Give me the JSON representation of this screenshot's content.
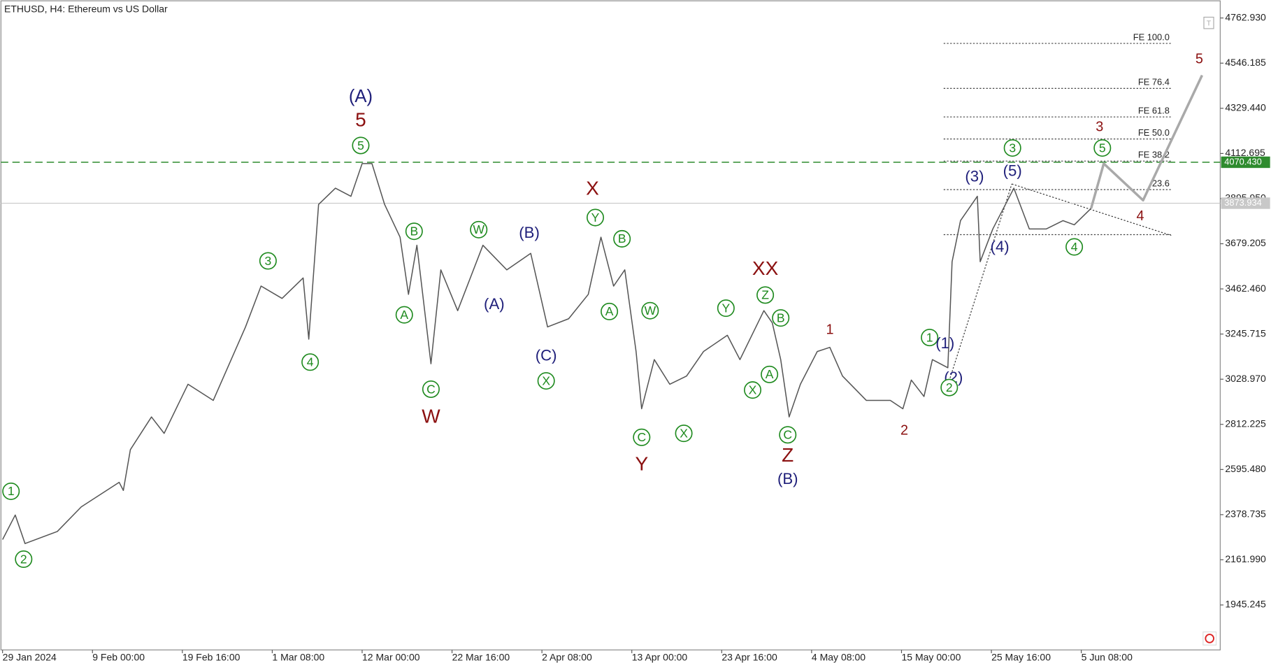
{
  "chart_data": {
    "type": "line",
    "title": "ETHUSD, H4:  Ethereum vs US Dollar",
    "xlim": [
      0,
      866
    ],
    "ylim": [
      1729.4,
      4849.3
    ],
    "xticks": [
      {
        "value": 0,
        "label": "29 Jan 2024"
      },
      {
        "value": 64,
        "label": "9 Feb 00:00"
      },
      {
        "value": 128,
        "label": "19 Feb 16:00"
      },
      {
        "value": 192,
        "label": "1 Mar 08:00"
      },
      {
        "value": 256,
        "label": "12 Mar 00:00"
      },
      {
        "value": 320,
        "label": "22 Mar 16:00"
      },
      {
        "value": 384,
        "label": "2 Apr 08:00"
      },
      {
        "value": 448,
        "label": "13 Apr 00:00"
      },
      {
        "value": 512,
        "label": "23 Apr 16:00"
      },
      {
        "value": 576,
        "label": "4 May 08:00"
      },
      {
        "value": 640,
        "label": "15 May 00:00"
      },
      {
        "value": 704,
        "label": "25 May 16:00"
      },
      {
        "value": 768,
        "label": "5 Jun 08:00"
      }
    ],
    "yticks": [
      {
        "value": 4762.93,
        "label": "4762.930"
      },
      {
        "value": 4546.185,
        "label": "4546.185"
      },
      {
        "value": 4329.44,
        "label": "4329.440"
      },
      {
        "value": 4112.695,
        "label": "4112.695"
      },
      {
        "value": 3895.95,
        "label": "3895.950"
      },
      {
        "value": 3679.205,
        "label": "3679.205"
      },
      {
        "value": 3462.46,
        "label": "3462.460"
      },
      {
        "value": 3245.715,
        "label": "3245.715"
      },
      {
        "value": 3028.97,
        "label": "3028.970"
      },
      {
        "value": 2812.225,
        "label": "2812.225"
      },
      {
        "value": 2595.48,
        "label": "2595.480"
      },
      {
        "value": 2378.735,
        "label": "2378.735"
      },
      {
        "value": 2161.99,
        "label": "2161.990"
      },
      {
        "value": 1945.245,
        "label": "1945.245"
      }
    ],
    "color": "#555555",
    "x": [
      0,
      9,
      16,
      39,
      56,
      83,
      86,
      91,
      106,
      115,
      132,
      150,
      173,
      184,
      199,
      214,
      218,
      225,
      237,
      248,
      256,
      263,
      272,
      283,
      289,
      295,
      305,
      312,
      324,
      342,
      359,
      376,
      388,
      403,
      417,
      426,
      435,
      443,
      451,
      455,
      464,
      475,
      487,
      499,
      516,
      525,
      542,
      548,
      554,
      560,
      568,
      580,
      589,
      598,
      615,
      632,
      641,
      647,
      656,
      662,
      673,
      676,
      682,
      694,
      696,
      705,
      720,
      731,
      743,
      755,
      763,
      775
    ],
    "values": [
      2259,
      2377,
      2240,
      2298,
      2416,
      2534,
      2495,
      2691,
      2848,
      2769,
      3005,
      2927,
      3280,
      3476,
      3417,
      3515,
      3221,
      3868,
      3946,
      3907,
      4064,
      4064,
      3868,
      3711,
      3436,
      3672,
      3103,
      3554,
      3358,
      3672,
      3554,
      3633,
      3280,
      3319,
      3436,
      3711,
      3476,
      3554,
      3162,
      2887,
      3123,
      3005,
      3044,
      3162,
      3240,
      3123,
      3358,
      3299,
      3123,
      2848,
      3005,
      3162,
      3182,
      3044,
      2927,
      2927,
      2887,
      3025,
      2946,
      3123,
      3084,
      3593,
      3790,
      3907,
      3593,
      3750,
      3946,
      3750,
      3750,
      3790,
      3770,
      3849
    ],
    "forecast": {
      "color": "#a9a9a9",
      "x": [
        775,
        784,
        812,
        854
      ],
      "values": [
        3849,
        4064,
        3888,
        4488
      ]
    },
    "price_lines": [
      {
        "value": 4070.43,
        "label": "4070.430",
        "color": "#2e8b2e",
        "dashed": true
      },
      {
        "value": 3873.934,
        "label": "3873.934",
        "color": "#c8c8c8",
        "dashed": false
      }
    ],
    "fib_range": [
      670,
      832
    ],
    "fib_levels": [
      {
        "value": 4641,
        "label": "FE 100.0"
      },
      {
        "value": 4425,
        "label": "FE 76.4"
      },
      {
        "value": 4288,
        "label": "FE 61.8"
      },
      {
        "value": 4182,
        "label": "FE 50.0"
      },
      {
        "value": 4076,
        "label": "FE 38.2"
      },
      {
        "value": 3939,
        "label": "23.6"
      },
      {
        "value": 3723,
        "label": null
      }
    ],
    "annotations": [
      {
        "text": "1",
        "x": 6,
        "y": 2491,
        "kind": "circle"
      },
      {
        "text": "2",
        "x": 15,
        "y": 2165,
        "kind": "circle"
      },
      {
        "text": "3",
        "x": 189,
        "y": 3597,
        "kind": "circle"
      },
      {
        "text": "4",
        "x": 219,
        "y": 3111,
        "kind": "circle"
      },
      {
        "text": "5",
        "x": 255,
        "y": 4151,
        "kind": "circle"
      },
      {
        "text": "(A)",
        "x": 255,
        "y": 4386,
        "kind": "navy-large"
      },
      {
        "text": "5",
        "x": 255,
        "y": 4272,
        "kind": "red-large"
      },
      {
        "text": "B",
        "x": 293,
        "y": 3739,
        "kind": "circle"
      },
      {
        "text": "A",
        "x": 286,
        "y": 3338,
        "kind": "circle"
      },
      {
        "text": "C",
        "x": 305,
        "y": 2981,
        "kind": "circle"
      },
      {
        "text": "W",
        "x": 305,
        "y": 2848,
        "kind": "red-large"
      },
      {
        "text": "W",
        "x": 339,
        "y": 3747,
        "kind": "circle"
      },
      {
        "text": "(A)",
        "x": 350,
        "y": 3389,
        "kind": "navy"
      },
      {
        "text": "(B)",
        "x": 375,
        "y": 3731,
        "kind": "navy"
      },
      {
        "text": "(C)",
        "x": 387,
        "y": 3142,
        "kind": "navy"
      },
      {
        "text": "X",
        "x": 387,
        "y": 3021,
        "kind": "circle"
      },
      {
        "text": "X",
        "x": 420,
        "y": 3943,
        "kind": "red-large"
      },
      {
        "text": "Y",
        "x": 422,
        "y": 3805,
        "kind": "circle"
      },
      {
        "text": "B",
        "x": 441,
        "y": 3703,
        "kind": "circle"
      },
      {
        "text": "A",
        "x": 432,
        "y": 3354,
        "kind": "circle"
      },
      {
        "text": "W",
        "x": 461,
        "y": 3358,
        "kind": "circle"
      },
      {
        "text": "C",
        "x": 455,
        "y": 2750,
        "kind": "circle"
      },
      {
        "text": "Y",
        "x": 455,
        "y": 2620,
        "kind": "red-large"
      },
      {
        "text": "X",
        "x": 485,
        "y": 2769,
        "kind": "circle"
      },
      {
        "text": "Y",
        "x": 515,
        "y": 3370,
        "kind": "circle"
      },
      {
        "text": "XX",
        "x": 543,
        "y": 3558,
        "kind": "red-large"
      },
      {
        "text": "Z",
        "x": 543,
        "y": 3433,
        "kind": "circle"
      },
      {
        "text": "B",
        "x": 554,
        "y": 3323,
        "kind": "circle"
      },
      {
        "text": "A",
        "x": 546,
        "y": 3052,
        "kind": "circle"
      },
      {
        "text": "X",
        "x": 534,
        "y": 2977,
        "kind": "circle"
      },
      {
        "text": "C",
        "x": 559,
        "y": 2762,
        "kind": "circle"
      },
      {
        "text": "Z",
        "x": 559,
        "y": 2663,
        "kind": "red-large"
      },
      {
        "text": "(B)",
        "x": 559,
        "y": 2550,
        "kind": "navy"
      },
      {
        "text": "1",
        "x": 589,
        "y": 3268,
        "kind": "red"
      },
      {
        "text": "2",
        "x": 642,
        "y": 2785,
        "kind": "red"
      },
      {
        "text": "1",
        "x": 660,
        "y": 3229,
        "kind": "circle"
      },
      {
        "text": "(1)",
        "x": 671,
        "y": 3201,
        "kind": "navy"
      },
      {
        "text": "(2)",
        "x": 677,
        "y": 3036,
        "kind": "navy"
      },
      {
        "text": "2",
        "x": 674,
        "y": 2989,
        "kind": "circle"
      },
      {
        "text": "(3)",
        "x": 692,
        "y": 4002,
        "kind": "navy"
      },
      {
        "text": "3",
        "x": 719,
        "y": 4139,
        "kind": "circle"
      },
      {
        "text": "(5)",
        "x": 719,
        "y": 4029,
        "kind": "navy"
      },
      {
        "text": "(4)",
        "x": 710,
        "y": 3664,
        "kind": "navy"
      },
      {
        "text": "4",
        "x": 763,
        "y": 3664,
        "kind": "circle"
      },
      {
        "text": "5",
        "x": 783,
        "y": 4139,
        "kind": "circle"
      },
      {
        "text": "3",
        "x": 781,
        "y": 4241,
        "kind": "red"
      },
      {
        "text": "4",
        "x": 810,
        "y": 3813,
        "kind": "red"
      },
      {
        "text": "5",
        "x": 852,
        "y": 4567,
        "kind": "red"
      }
    ]
  }
}
